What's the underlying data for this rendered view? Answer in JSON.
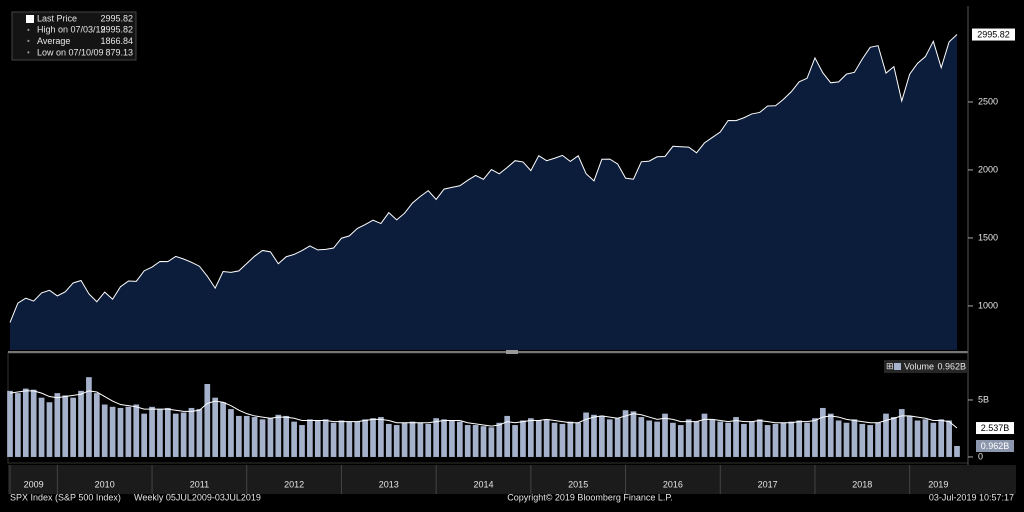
{
  "chart_data": [
    {
      "type": "area",
      "legend": [
        {
          "label": "Last Price",
          "value": 2995.82
        },
        {
          "label": "High on 07/03/19",
          "value": 2995.82
        },
        {
          "label": "Average",
          "value": 1866.84
        },
        {
          "label": "Low on 07/10/09",
          "value": 879.13
        }
      ],
      "categories": [
        "2009",
        null,
        null,
        null,
        null,
        null,
        "2010",
        null,
        null,
        null,
        null,
        null,
        null,
        null,
        null,
        null,
        null,
        null,
        "2011",
        null,
        null,
        null,
        null,
        null,
        null,
        null,
        null,
        null,
        null,
        null,
        "2012",
        null,
        null,
        null,
        null,
        null,
        null,
        null,
        null,
        null,
        null,
        null,
        "2013",
        null,
        null,
        null,
        null,
        null,
        null,
        null,
        null,
        null,
        null,
        null,
        "2014",
        null,
        null,
        null,
        null,
        null,
        null,
        null,
        null,
        null,
        null,
        null,
        "2015",
        null,
        null,
        null,
        null,
        null,
        null,
        null,
        null,
        null,
        null,
        null,
        "2016",
        null,
        null,
        null,
        null,
        null,
        null,
        null,
        null,
        null,
        null,
        null,
        "2017",
        null,
        null,
        null,
        null,
        null,
        null,
        null,
        null,
        null,
        null,
        null,
        "2018",
        null,
        null,
        null,
        null,
        null,
        null,
        null,
        null,
        null,
        null,
        null,
        "2019",
        null,
        null,
        null,
        null,
        null,
        null
      ],
      "series": [
        {
          "color": "#ffffff",
          "fill": "#0c1d3b",
          "values": [
            879.13,
            1021,
            1057,
            1036,
            1096,
            1115,
            1074,
            1104,
            1169,
            1187,
            1089,
            1031,
            1102,
            1049,
            1141,
            1183,
            1181,
            1258,
            1286,
            1327,
            1326,
            1364,
            1345,
            1321,
            1292,
            1219,
            1131,
            1253,
            1247,
            1258,
            1312,
            1366,
            1408,
            1398,
            1310,
            1362,
            1379,
            1407,
            1441,
            1412,
            1416,
            1426,
            1498,
            1515,
            1569,
            1598,
            1631,
            1606,
            1686,
            1633,
            1682,
            1757,
            1806,
            1848,
            1783,
            1859,
            1872,
            1884,
            1924,
            1960,
            1931,
            2003,
            1972,
            2018,
            2068,
            2059,
            1995,
            2105,
            2068,
            2086,
            2107,
            2063,
            2104,
            1972,
            1920,
            2079,
            2080,
            2044,
            1940,
            1932,
            2060,
            2065,
            2097,
            2099,
            2174,
            2171,
            2168,
            2126,
            2199,
            2239,
            2279,
            2364,
            2363,
            2384,
            2412,
            2423,
            2470,
            2472,
            2519,
            2575,
            2648,
            2674,
            2824,
            2714,
            2641,
            2648,
            2705,
            2718,
            2816,
            2902,
            2914,
            2712,
            2760,
            2507,
            2704,
            2784,
            2834,
            2946,
            2752,
            2942,
            2995.82
          ],
          "last_label": 2995.82
        }
      ],
      "ylim": [
        676,
        3191
      ],
      "yticks": [
        1000,
        1500,
        2000,
        2500
      ]
    },
    {
      "type": "bar",
      "series": [
        {
          "name": "Volume",
          "color": "#a6b2cb",
          "values": [
            5.8,
            5.6,
            6.0,
            5.9,
            5.2,
            4.8,
            5.6,
            5.4,
            5.2,
            5.8,
            7.0,
            5.6,
            4.6,
            4.4,
            4.3,
            4.4,
            4.6,
            3.8,
            4.4,
            4.2,
            4.3,
            3.8,
            3.9,
            4.3,
            4.2,
            6.4,
            5.2,
            4.8,
            4.2,
            3.6,
            3.6,
            3.5,
            3.3,
            3.4,
            3.7,
            3.6,
            3.1,
            2.8,
            3.3,
            3.2,
            3.3,
            3.0,
            3.2,
            3.1,
            3.1,
            3.3,
            3.4,
            3.5,
            2.9,
            2.8,
            3.0,
            3.1,
            3.0,
            2.9,
            3.4,
            3.3,
            3.2,
            3.1,
            2.8,
            2.8,
            2.7,
            2.6,
            3.0,
            3.6,
            2.8,
            3.2,
            3.4,
            3.2,
            3.3,
            3.0,
            2.9,
            3.1,
            3.0,
            3.9,
            3.7,
            3.6,
            3.3,
            3.4,
            4.1,
            4.0,
            3.5,
            3.2,
            3.1,
            3.8,
            3.0,
            2.8,
            3.3,
            3.1,
            3.8,
            3.3,
            3.1,
            3.0,
            3.5,
            2.9,
            3.1,
            3.3,
            2.8,
            2.9,
            3.0,
            3.1,
            3.2,
            3.0,
            3.4,
            4.3,
            3.8,
            3.2,
            3.0,
            3.3,
            2.9,
            2.8,
            3.0,
            3.8,
            3.5,
            4.2,
            3.6,
            3.2,
            3.3,
            3.0,
            3.3,
            3.2,
            0.962
          ],
          "last_label": {
            "value": 0.962,
            "label": "0.962B"
          }
        },
        {
          "type": "line",
          "color": "#ffffff",
          "values": [
            5.6,
            5.7,
            5.8,
            5.8,
            5.6,
            5.3,
            5.2,
            5.3,
            5.4,
            5.5,
            5.8,
            5.7,
            5.3,
            4.9,
            4.6,
            4.5,
            4.4,
            4.2,
            4.2,
            4.2,
            4.2,
            4.1,
            4.0,
            4.0,
            4.1,
            4.7,
            4.9,
            4.8,
            4.5,
            4.1,
            3.8,
            3.6,
            3.5,
            3.4,
            3.5,
            3.5,
            3.4,
            3.2,
            3.2,
            3.2,
            3.2,
            3.1,
            3.1,
            3.1,
            3.1,
            3.2,
            3.3,
            3.3,
            3.2,
            3.0,
            3.0,
            3.0,
            3.0,
            3.0,
            3.1,
            3.2,
            3.2,
            3.2,
            3.0,
            2.9,
            2.8,
            2.7,
            2.8,
            3.1,
            3.0,
            3.1,
            3.2,
            3.2,
            3.3,
            3.2,
            3.1,
            3.0,
            3.0,
            3.3,
            3.5,
            3.6,
            3.5,
            3.4,
            3.6,
            3.8,
            3.7,
            3.5,
            3.3,
            3.4,
            3.3,
            3.1,
            3.1,
            3.1,
            3.3,
            3.3,
            3.2,
            3.1,
            3.2,
            3.1,
            3.1,
            3.2,
            3.1,
            3.0,
            3.0,
            3.0,
            3.1,
            3.1,
            3.2,
            3.5,
            3.6,
            3.5,
            3.3,
            3.2,
            3.1,
            3.0,
            3.0,
            3.2,
            3.4,
            3.6,
            3.6,
            3.5,
            3.4,
            3.2,
            3.2,
            3.1,
            2.537
          ],
          "last_label": {
            "value": 2.537,
            "label": "2.537B"
          }
        }
      ],
      "ylim": [
        -0.53,
        8.77
      ],
      "yticks": [
        0,
        {
          "value": 5,
          "label": "5B"
        }
      ]
    }
  ],
  "footer": {
    "ticker": "SPX Index (S&P 500 Index)",
    "range": "Weekly 05JUL2009-03JUL2019",
    "copyright": "Copyright© 2019 Bloomberg Finance L.P.",
    "timestamp": "03-Jul-2019 10:57:17"
  }
}
